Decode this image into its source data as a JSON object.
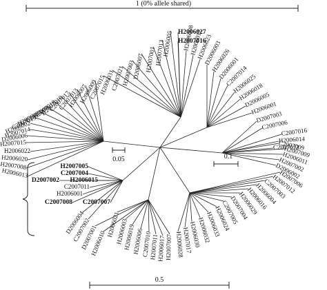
{
  "scales": {
    "top": "1 (0% allele shared)",
    "small_left": "0.05",
    "small_right": "0.1",
    "bottom": "0.5"
  },
  "leaves": [
    {
      "text": "H2006027",
      "bold": true
    },
    {
      "text": "H2007016",
      "bold": true
    },
    {
      "text": "H2006005",
      "bold": false
    },
    {
      "text": "H2007013",
      "bold": false
    },
    {
      "text": "H2007001",
      "bold": false
    },
    {
      "text": "D2006007",
      "bold": false
    },
    {
      "text": "H2007003",
      "bold": false
    },
    {
      "text": "C2007021",
      "bold": false
    },
    {
      "text": "H2006031",
      "bold": false
    },
    {
      "text": "C2007015",
      "bold": false
    },
    {
      "text": "H2006009",
      "bold": false
    },
    {
      "text": "H2006007",
      "bold": false
    },
    {
      "text": "C2007013",
      "bold": false
    },
    {
      "text": "C2007017",
      "bold": false
    },
    {
      "text": "H2007010",
      "bold": false
    },
    {
      "text": "H2007018",
      "bold": false
    },
    {
      "text": "C2007008",
      "bold": false
    },
    {
      "text": "H2006004",
      "bold": false
    },
    {
      "text": "C2007019",
      "bold": false
    },
    {
      "text": "H2006002",
      "bold": false
    },
    {
      "text": "H2007014",
      "bold": false
    },
    {
      "text": "D2006006",
      "bold": false
    },
    {
      "text": "H2007015",
      "bold": false
    },
    {
      "text": "H2006022",
      "bold": false
    },
    {
      "text": "H2006020",
      "bold": false
    },
    {
      "text": "H2007008",
      "bold": false
    },
    {
      "text": "H2006013",
      "bold": false
    },
    {
      "text": "H2007005",
      "bold": true
    },
    {
      "text": "C2007004",
      "bold": true
    },
    {
      "text": "D2007002",
      "bold": true
    },
    {
      "text": "H2006015",
      "bold": true
    },
    {
      "text": "C2007011",
      "bold": false
    },
    {
      "text": "H2006001",
      "bold": false
    },
    {
      "text": "C2007008",
      "bold": true
    },
    {
      "text": "C2007007",
      "bold": true
    },
    {
      "text": "D2006004",
      "bold": false
    },
    {
      "text": "C2007002",
      "bold": false
    },
    {
      "text": "D2007001",
      "bold": false
    },
    {
      "text": "H2006010",
      "bold": false
    },
    {
      "text": "H2006021",
      "bold": false
    },
    {
      "text": "H2006003",
      "bold": false
    },
    {
      "text": "H2006019",
      "bold": false
    },
    {
      "text": "H2006006",
      "bold": false
    },
    {
      "text": "C2007010",
      "bold": false
    },
    {
      "text": "H2007011",
      "bold": false
    },
    {
      "text": "H2006017",
      "bold": false
    },
    {
      "text": "H2007007",
      "bold": false
    },
    {
      "text": "H2006028",
      "bold": false
    },
    {
      "text": "H2007017",
      "bold": false
    },
    {
      "text": "H2006030",
      "bold": false
    },
    {
      "text": "H2006032",
      "bold": false
    },
    {
      "text": "H2006033",
      "bold": false
    },
    {
      "text": "H2006024",
      "bold": false
    },
    {
      "text": "C2007005",
      "bold": false
    },
    {
      "text": "D2007004",
      "bold": false
    },
    {
      "text": "H2006029",
      "bold": false
    },
    {
      "text": "H2006016",
      "bold": false
    },
    {
      "text": "H2006004",
      "bold": false
    },
    {
      "text": "C2007003",
      "bold": false
    },
    {
      "text": "H2007012",
      "bold": false
    },
    {
      "text": "H2007006",
      "bold": false
    },
    {
      "text": "D2006002",
      "bold": false
    },
    {
      "text": "H2007002",
      "bold": false
    },
    {
      "text": "H2006011",
      "bold": false
    },
    {
      "text": "H2007009",
      "bold": false
    },
    {
      "text": "C2007009",
      "bold": false
    },
    {
      "text": "C2007012",
      "bold": false
    },
    {
      "text": "H2006014",
      "bold": false
    },
    {
      "text": "C2007016",
      "bold": false
    },
    {
      "text": "C2007006",
      "bold": false
    },
    {
      "text": "D2007003",
      "bold": false
    },
    {
      "text": "H2006001",
      "bold": false
    },
    {
      "text": "D2006005",
      "bold": false
    },
    {
      "text": "H2006018",
      "bold": false
    },
    {
      "text": "H2006025",
      "bold": false
    },
    {
      "text": "C2007014",
      "bold": false
    },
    {
      "text": "D2006001",
      "bold": false
    },
    {
      "text": "H2006026",
      "bold": false
    },
    {
      "text": "D2006003",
      "bold": false
    },
    {
      "text": "H2006023",
      "bold": false
    },
    {
      "text": "H2006012",
      "bold": false
    },
    {
      "text": "H2006008",
      "bold": false
    }
  ]
}
